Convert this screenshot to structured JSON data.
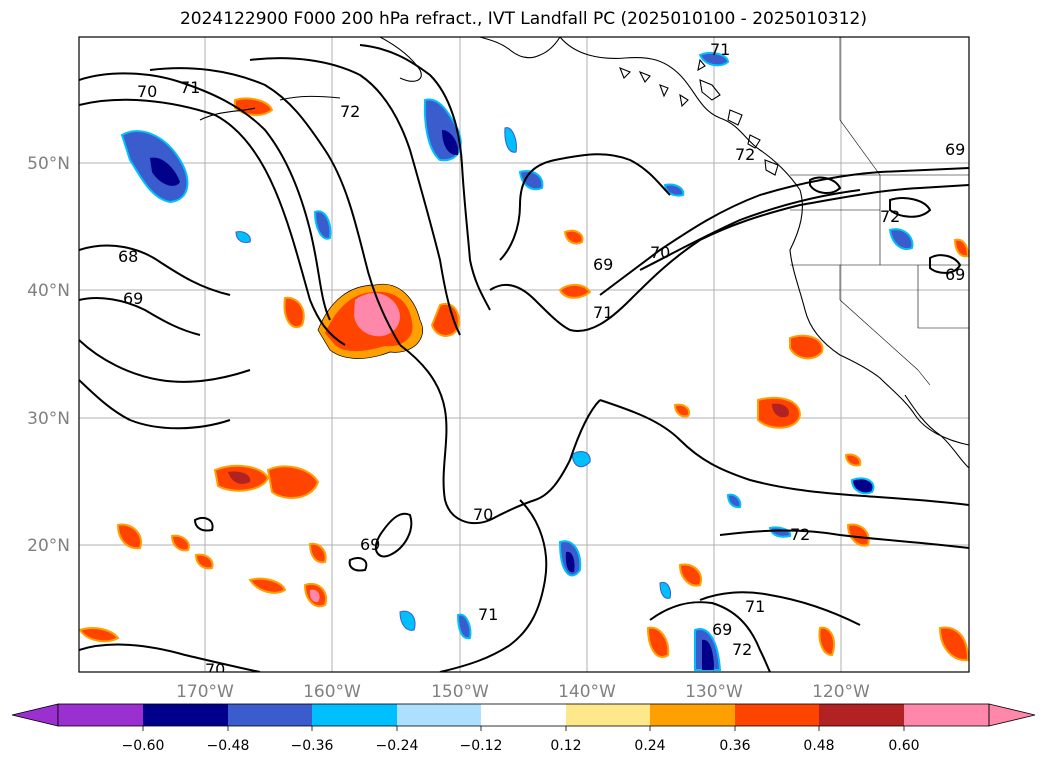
{
  "title": "2024122900 F000 200 hPa refract., IVT Landfall PC (2025010100 - 2025010312)",
  "lat_labels": [
    "50°N",
    "40°N",
    "30°N",
    "20°N"
  ],
  "lon_labels": [
    "170°W",
    "160°W",
    "150°W",
    "140°W",
    "130°W",
    "120°W"
  ],
  "contour_labels": [
    "71",
    "70",
    "71",
    "72",
    "68",
    "69",
    "69",
    "70",
    "71",
    "72",
    "69",
    "70",
    "69",
    "71",
    "72",
    "71",
    "72",
    "70",
    "69",
    "69",
    "72"
  ],
  "colorbar": {
    "ticks": [
      "−0.60",
      "−0.48",
      "−0.36",
      "−0.24",
      "−0.12",
      "0.12",
      "0.24",
      "0.36",
      "0.48",
      "0.60"
    ],
    "colors": [
      "#9b30d0",
      "#00008b",
      "#3a5ccc",
      "#00bfff",
      "#addfff",
      "#ffffff",
      "#ffe88a",
      "#ffa000",
      "#ff4400",
      "#b22222",
      "#ff88aa"
    ]
  }
}
